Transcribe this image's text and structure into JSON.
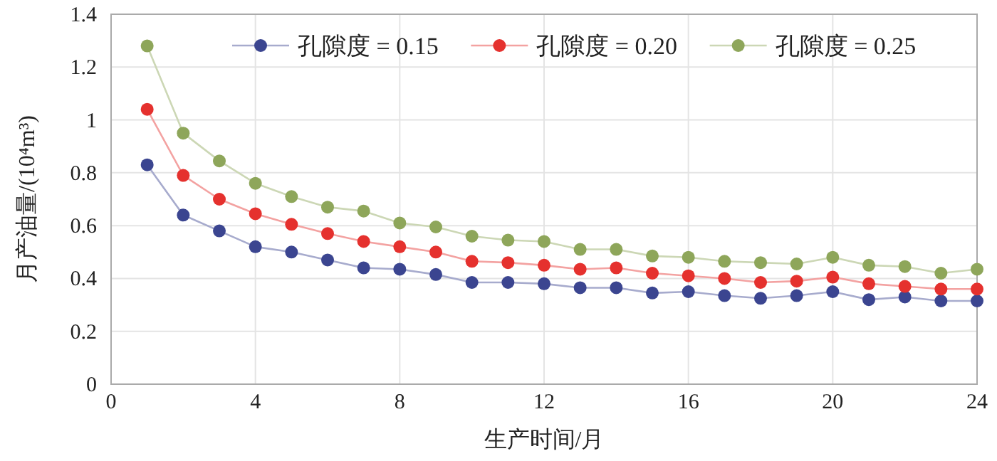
{
  "chart_data": {
    "type": "line",
    "xlabel": "生产时间/月",
    "ylabel": "月产油量/(10⁴m³)",
    "x": [
      1,
      2,
      3,
      4,
      5,
      6,
      7,
      8,
      9,
      10,
      11,
      12,
      13,
      14,
      15,
      16,
      17,
      18,
      19,
      20,
      21,
      22,
      23,
      24
    ],
    "series": [
      {
        "name": "孔隙度 = 0.15",
        "color": "#3b4590",
        "values": [
          0.83,
          0.64,
          0.58,
          0.52,
          0.5,
          0.47,
          0.44,
          0.435,
          0.415,
          0.385,
          0.385,
          0.38,
          0.365,
          0.365,
          0.345,
          0.35,
          0.335,
          0.325,
          0.335,
          0.35,
          0.32,
          0.33,
          0.315,
          0.315
        ]
      },
      {
        "name": "孔隙度 = 0.20",
        "color": "#e5312e",
        "values": [
          1.04,
          0.79,
          0.7,
          0.645,
          0.605,
          0.57,
          0.54,
          0.52,
          0.5,
          0.465,
          0.46,
          0.45,
          0.435,
          0.44,
          0.42,
          0.41,
          0.4,
          0.385,
          0.39,
          0.405,
          0.38,
          0.37,
          0.36,
          0.36
        ]
      },
      {
        "name": "孔隙度 = 0.25",
        "color": "#8ea65a",
        "values": [
          1.28,
          0.95,
          0.845,
          0.76,
          0.71,
          0.67,
          0.655,
          0.61,
          0.595,
          0.56,
          0.545,
          0.54,
          0.51,
          0.51,
          0.485,
          0.48,
          0.465,
          0.46,
          0.455,
          0.48,
          0.45,
          0.445,
          0.42,
          0.435
        ]
      }
    ],
    "xlim": [
      0,
      24
    ],
    "xticks": [
      0,
      4,
      8,
      12,
      16,
      20,
      24
    ],
    "ylim": [
      0,
      1.4
    ],
    "yticks": [
      0,
      0.2,
      0.4,
      0.6,
      0.8,
      1,
      1.2,
      1.4
    ],
    "grid": true,
    "legend": "top",
    "marker": "circle",
    "line_style": "solid"
  }
}
